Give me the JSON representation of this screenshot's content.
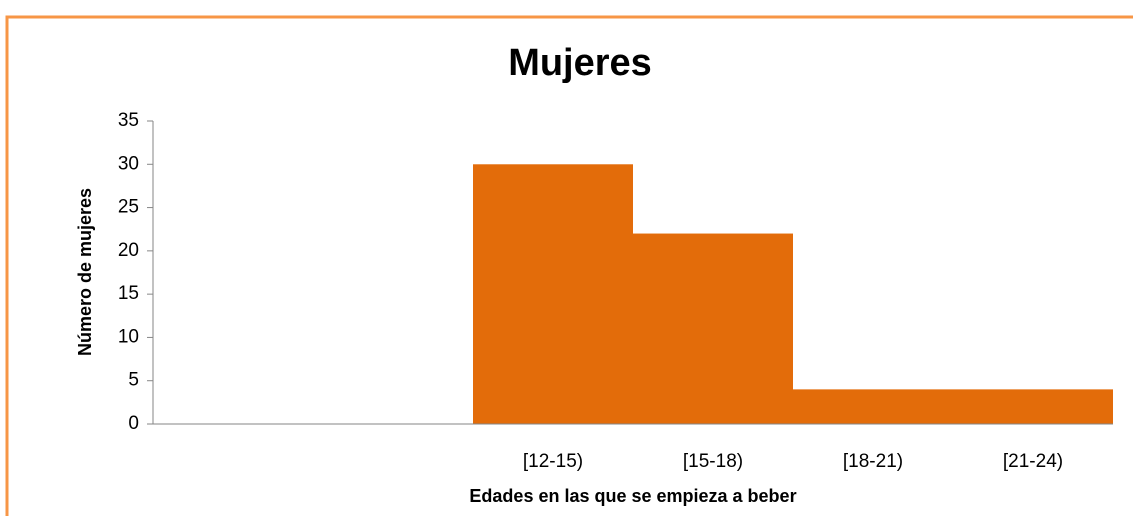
{
  "chart_data": {
    "type": "bar",
    "title": "Mujeres",
    "x_label": "Edades en las que se empieza a beber",
    "y_label": "Número de mujeres",
    "categories": [
      null,
      null,
      "[12-15)",
      "[15-18)",
      "[18-21)",
      "[21-24)"
    ],
    "values": [
      0,
      0,
      30,
      22,
      4,
      4
    ],
    "color": "#e36c0a",
    "ylim": [
      0,
      35
    ],
    "yticks": [
      0,
      5,
      10,
      15,
      20,
      25,
      30,
      35
    ],
    "grid": false
  }
}
